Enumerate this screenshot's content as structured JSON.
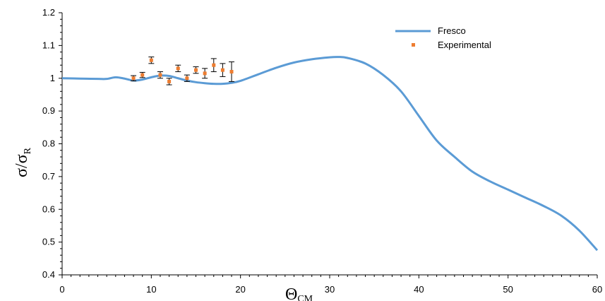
{
  "chart_data": {
    "type": "scatter",
    "title": "",
    "xlabel": "ΘCM",
    "ylabel": "σ/σR",
    "xlim": [
      0,
      60
    ],
    "ylim": [
      0.4,
      1.2
    ],
    "x_ticks": [
      0,
      10,
      20,
      30,
      40,
      50,
      60
    ],
    "y_ticks": [
      0.4,
      0.5,
      0.6,
      0.7,
      0.8,
      0.9,
      1,
      1.1,
      1.2
    ],
    "x_tick_labels": [
      "0",
      "10",
      "20",
      "30",
      "40",
      "50",
      "60"
    ],
    "y_tick_labels": [
      "0.4",
      "0.5",
      "0.6",
      "0.7",
      "0.8",
      "0.9",
      "1",
      "1.1",
      "1.2"
    ],
    "grid": false,
    "legend_position": "top-right",
    "series": [
      {
        "name": "Fresco",
        "kind": "line",
        "color": "#5b9bd5",
        "x": [
          0,
          2,
          4,
          5,
          6,
          7,
          8,
          9,
          10,
          11,
          12,
          13,
          14,
          15,
          16,
          17,
          18,
          19,
          20,
          22,
          24,
          26,
          28,
          30,
          31,
          32,
          34,
          36,
          38,
          40,
          42,
          44,
          46,
          48,
          50,
          52,
          54,
          56,
          58,
          60
        ],
        "y": [
          1.0,
          0.999,
          0.998,
          0.998,
          1.003,
          0.999,
          0.993,
          0.996,
          1.003,
          1.008,
          1.007,
          1.0,
          0.993,
          0.988,
          0.985,
          0.983,
          0.983,
          0.986,
          0.992,
          1.012,
          1.032,
          1.048,
          1.058,
          1.064,
          1.065,
          1.062,
          1.045,
          1.01,
          0.96,
          0.885,
          0.81,
          0.76,
          0.715,
          0.685,
          0.66,
          0.635,
          0.61,
          0.58,
          0.535,
          0.475
        ]
      },
      {
        "name": "Experimental",
        "kind": "scatter",
        "color": "#ed7d31",
        "x": [
          8,
          9,
          10,
          11,
          12,
          13,
          14,
          15,
          16,
          17,
          18,
          19
        ],
        "y": [
          1.0,
          1.01,
          1.055,
          1.01,
          0.99,
          1.03,
          1.0,
          1.025,
          1.015,
          1.04,
          1.025,
          1.02
        ],
        "err": [
          0.008,
          0.008,
          0.01,
          0.01,
          0.01,
          0.01,
          0.01,
          0.01,
          0.015,
          0.02,
          0.02,
          0.03
        ]
      }
    ]
  }
}
